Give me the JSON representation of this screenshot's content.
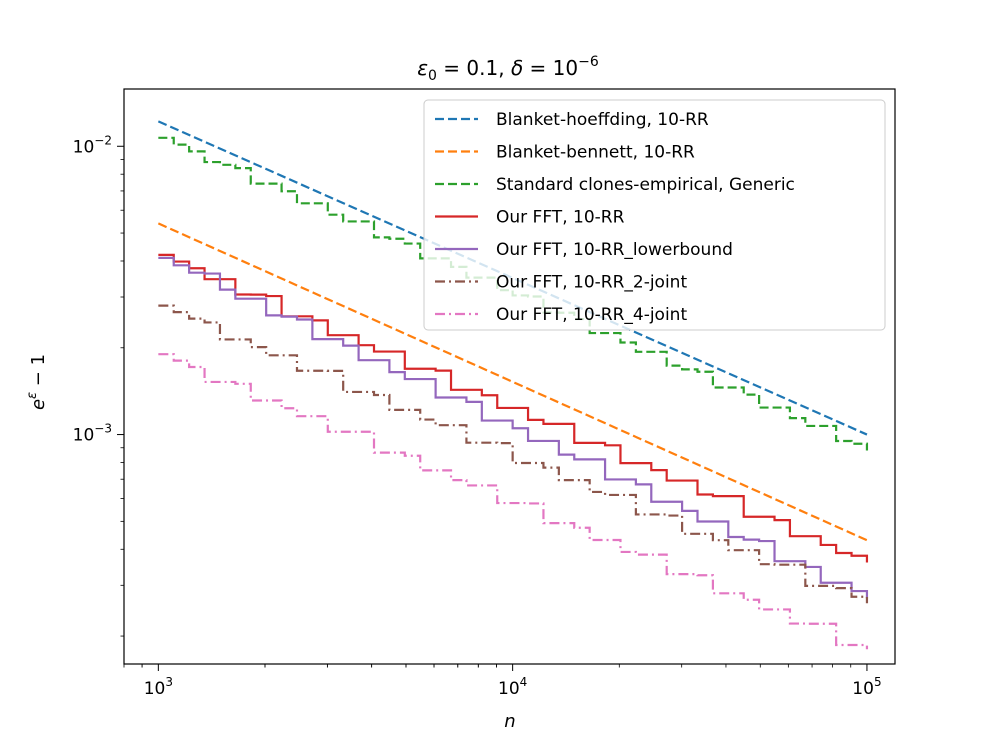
{
  "chart_data": {
    "type": "line",
    "title_parts": {
      "eps_symbol": "ε",
      "eps_sub": "0",
      "eps_eq": " = 0.1, ",
      "delta_symbol": "δ",
      "delta_eq": " = 10",
      "delta_exp": "−6"
    },
    "xlabel": "n",
    "ylabel_parts": {
      "base": "e",
      "exp": "ε",
      "rest": " − 1"
    },
    "xscale": "log",
    "yscale": "log",
    "xlim": [
      800,
      120000
    ],
    "ylim": [
      0.00016,
      0.0158
    ],
    "x_ticks": [
      {
        "value": 1000,
        "base": "10",
        "exp": "3"
      },
      {
        "value": 10000,
        "base": "10",
        "exp": "4"
      },
      {
        "value": 100000,
        "base": "10",
        "exp": "5"
      }
    ],
    "y_ticks": [
      {
        "value": 0.001,
        "base": "10",
        "exp": "−3"
      },
      {
        "value": 0.01,
        "base": "10",
        "exp": "−2"
      }
    ],
    "legend_position": "upper right",
    "series": [
      {
        "name": "Blanket-hoeffding, 10-RR",
        "color": "#1f77b4",
        "style": "dashed",
        "kind": "power",
        "y_start": 0.0122,
        "y_end": 0.001
      },
      {
        "name": "Blanket-bennett, 10-RR",
        "color": "#ff7f0e",
        "style": "dashed",
        "kind": "power",
        "y_start": 0.0054,
        "y_end": 0.00043
      },
      {
        "name": "Standard clones-empirical, Generic",
        "color": "#2ca02c",
        "style": "dashed",
        "kind": "step",
        "y_start": 0.0107,
        "y_end": 0.00088,
        "jitter": 0.035
      },
      {
        "name": "Our FFT, 10-RR",
        "color": "#d62728",
        "style": "solid",
        "kind": "step",
        "y_start": 0.0042,
        "y_end": 0.00036,
        "jitter": 0.055
      },
      {
        "name": "Our FFT, 10-RR_lowerbound",
        "color": "#9467bd",
        "style": "solid",
        "kind": "step",
        "y_start": 0.0041,
        "y_end": 0.00027,
        "jitter": 0.05
      },
      {
        "name": "Our FFT, 10-RR_2-joint",
        "color": "#8c564b",
        "style": "dashdot",
        "kind": "step",
        "y_start": 0.0028,
        "y_end": 0.00026,
        "jitter": 0.06
      },
      {
        "name": "Our FFT, 10-RR_4-joint",
        "color": "#e377c2",
        "style": "dashdot",
        "kind": "step",
        "y_start": 0.0019,
        "y_end": 0.00018,
        "jitter": 0.06
      }
    ]
  }
}
